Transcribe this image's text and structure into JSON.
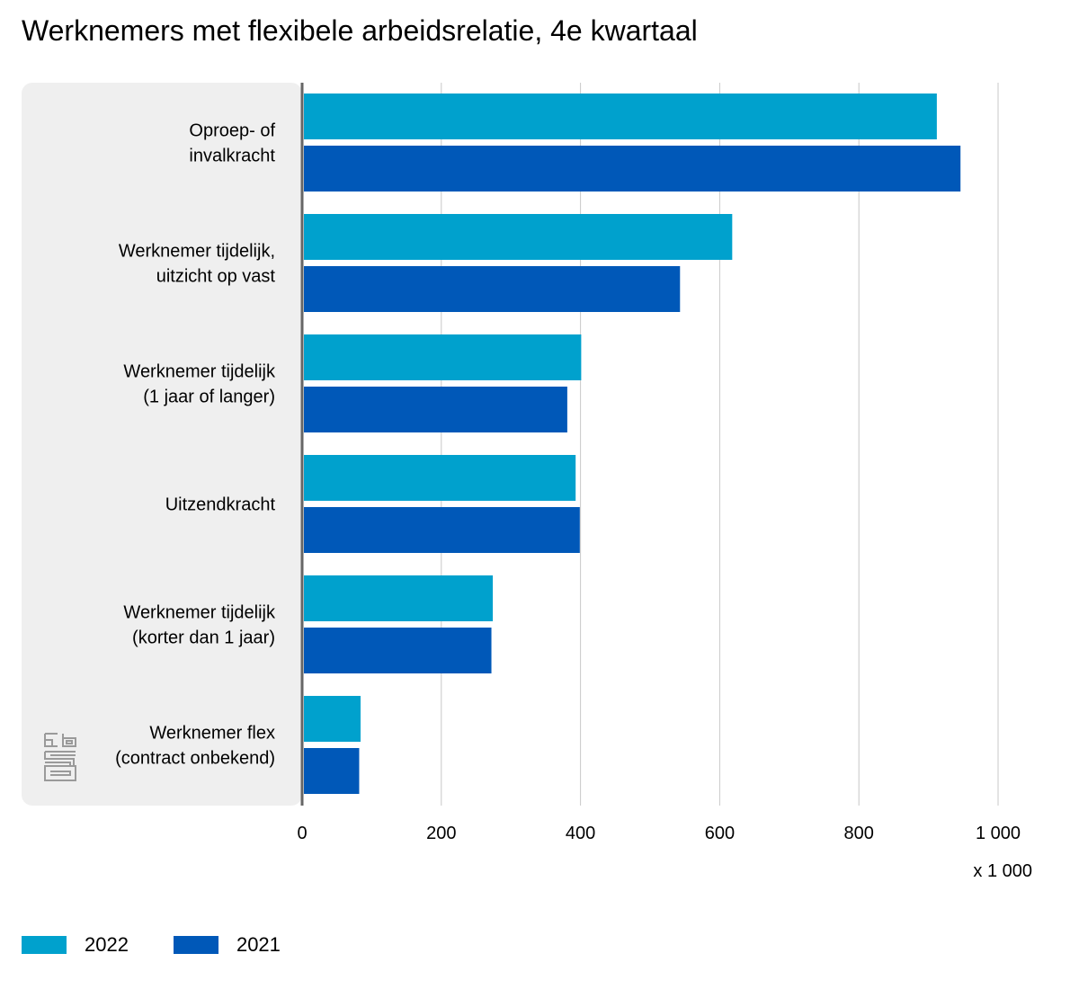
{
  "chart_data": {
    "type": "bar",
    "orientation": "horizontal",
    "title": "Werknemers met flexibele arbeidsrelatie, 4e kwartaal",
    "categories": [
      [
        "Oproep- of",
        "invalkracht"
      ],
      [
        "Werknemer tijdelijk,",
        "uitzicht op vast"
      ],
      [
        "Werknemer tijdelijk",
        "(1 jaar of langer)"
      ],
      [
        "Uitzendkracht"
      ],
      [
        "Werknemer tijdelijk",
        "(korter dan 1 jaar)"
      ],
      [
        "Werknemer flex",
        "(contract onbekend)"
      ]
    ],
    "series": [
      {
        "name": "2022",
        "color": "#00a1cd",
        "values": [
          912,
          618,
          401,
          393,
          274,
          84
        ]
      },
      {
        "name": "2021",
        "color": "#0058b8",
        "values": [
          946,
          543,
          381,
          399,
          272,
          82
        ]
      }
    ],
    "xlim": [
      0,
      1000
    ],
    "xticks": [
      0,
      200,
      400,
      600,
      800,
      1000
    ],
    "xtick_labels": [
      "0",
      "200",
      "400",
      "600",
      "800",
      "1 000"
    ],
    "xunit": "x 1 000",
    "grid": true,
    "legend_placement": "bottom-left"
  },
  "logo": {
    "name": "cbs-logo-icon"
  }
}
